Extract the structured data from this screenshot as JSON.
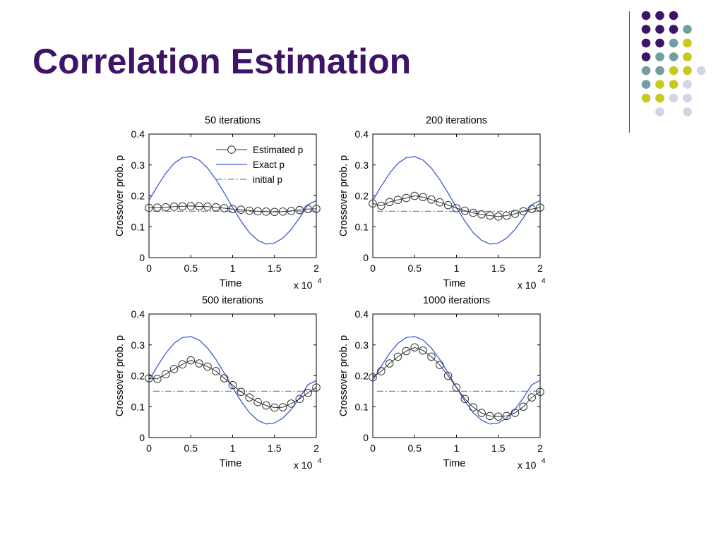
{
  "slide": {
    "title": "Correlation Estimation",
    "colors": {
      "title": "#3e1467",
      "purple": "#3e1467",
      "teal": "#6f9fa0",
      "yellow": "#c8c81e",
      "lavender": "#d4d4e8"
    }
  },
  "decor_dots": {
    "rows": [
      [
        "purple",
        "purple",
        "purple",
        null
      ],
      [
        "purple",
        "purple",
        "purple",
        "teal"
      ],
      [
        "purple",
        "purple",
        "teal",
        "yellow"
      ],
      [
        "purple",
        "teal",
        "teal",
        "yellow"
      ],
      [
        "teal",
        "teal",
        "yellow",
        "yellow",
        "lavender"
      ],
      [
        "teal",
        "yellow",
        "yellow",
        "lavender"
      ],
      [
        "yellow",
        "yellow",
        "lavender",
        "lavender"
      ],
      [
        null,
        "lavender",
        null,
        "lavender"
      ]
    ]
  },
  "chart_data": [
    {
      "type": "line",
      "title": "50 iterations",
      "xlabel": "Time",
      "ylabel": "Crossover prob. p",
      "x_multiplier": "x 10",
      "x_multiplier_exp": "4",
      "xlim": [
        0,
        2
      ],
      "ylim": [
        0,
        0.4
      ],
      "xticks": [
        "0",
        "0.5",
        "1",
        "1.5",
        "2"
      ],
      "yticks": [
        "0",
        "0.1",
        "0.2",
        "0.3",
        "0.4"
      ],
      "legend": {
        "position": "top-right",
        "entries": [
          "Estimated p",
          "Exact p",
          "initial p"
        ]
      },
      "series": [
        {
          "name": "Exact p",
          "x": [
            0,
            0.1,
            0.2,
            0.3,
            0.4,
            0.5,
            0.6,
            0.7,
            0.8,
            0.9,
            1.0,
            1.1,
            1.2,
            1.3,
            1.4,
            1.5,
            1.6,
            1.7,
            1.8,
            1.9,
            2.0
          ],
          "y": [
            0.185,
            0.231,
            0.273,
            0.305,
            0.324,
            0.327,
            0.316,
            0.29,
            0.253,
            0.209,
            0.162,
            0.118,
            0.081,
            0.056,
            0.044,
            0.047,
            0.063,
            0.091,
            0.129,
            0.171,
            0.185
          ]
        },
        {
          "name": "initial p",
          "x": [
            0.05,
            2.0
          ],
          "y": [
            0.15,
            0.15
          ]
        },
        {
          "name": "Estimated p",
          "x": [
            0,
            0.1,
            0.2,
            0.3,
            0.4,
            0.5,
            0.6,
            0.7,
            0.8,
            0.9,
            1.0,
            1.1,
            1.2,
            1.3,
            1.4,
            1.5,
            1.6,
            1.7,
            1.8,
            1.9,
            2.0
          ],
          "y": [
            0.161,
            0.162,
            0.163,
            0.165,
            0.166,
            0.167,
            0.166,
            0.165,
            0.163,
            0.16,
            0.157,
            0.155,
            0.152,
            0.15,
            0.149,
            0.148,
            0.149,
            0.151,
            0.154,
            0.157,
            0.158
          ]
        }
      ]
    },
    {
      "type": "line",
      "title": "200 iterations",
      "xlabel": "Time",
      "ylabel": "Crossover prob. p",
      "x_multiplier": "x 10",
      "x_multiplier_exp": "4",
      "xlim": [
        0,
        2
      ],
      "ylim": [
        0,
        0.4
      ],
      "xticks": [
        "0",
        "0.5",
        "1",
        "1.5",
        "2"
      ],
      "yticks": [
        "0",
        "0.1",
        "0.2",
        "0.3",
        "0.4"
      ],
      "series": [
        {
          "name": "Exact p",
          "x": [
            0,
            0.1,
            0.2,
            0.3,
            0.4,
            0.5,
            0.6,
            0.7,
            0.8,
            0.9,
            1.0,
            1.1,
            1.2,
            1.3,
            1.4,
            1.5,
            1.6,
            1.7,
            1.8,
            1.9,
            2.0
          ],
          "y": [
            0.185,
            0.231,
            0.273,
            0.305,
            0.324,
            0.327,
            0.316,
            0.29,
            0.253,
            0.209,
            0.162,
            0.118,
            0.081,
            0.056,
            0.044,
            0.047,
            0.063,
            0.091,
            0.129,
            0.171,
            0.185
          ]
        },
        {
          "name": "initial p",
          "x": [
            0.05,
            2.0
          ],
          "y": [
            0.15,
            0.15
          ]
        },
        {
          "name": "Estimated p",
          "x": [
            0,
            0.1,
            0.2,
            0.3,
            0.4,
            0.5,
            0.6,
            0.7,
            0.8,
            0.9,
            1.0,
            1.1,
            1.2,
            1.3,
            1.4,
            1.5,
            1.6,
            1.7,
            1.8,
            1.9,
            2.0
          ],
          "y": [
            0.175,
            0.168,
            0.18,
            0.187,
            0.193,
            0.2,
            0.196,
            0.188,
            0.179,
            0.17,
            0.16,
            0.152,
            0.145,
            0.14,
            0.136,
            0.133,
            0.136,
            0.142,
            0.15,
            0.157,
            0.162
          ]
        }
      ]
    },
    {
      "type": "line",
      "title": "500 iterations",
      "xlabel": "Time",
      "ylabel": "Crossover prob. p",
      "x_multiplier": "x 10",
      "x_multiplier_exp": "4",
      "xlim": [
        0,
        2
      ],
      "ylim": [
        0,
        0.4
      ],
      "xticks": [
        "0",
        "0.5",
        "1",
        "1.5",
        "2"
      ],
      "yticks": [
        "0",
        "0.1",
        "0.2",
        "0.3",
        "0.4"
      ],
      "series": [
        {
          "name": "Exact p",
          "x": [
            0,
            0.1,
            0.2,
            0.3,
            0.4,
            0.5,
            0.6,
            0.7,
            0.8,
            0.9,
            1.0,
            1.1,
            1.2,
            1.3,
            1.4,
            1.5,
            1.6,
            1.7,
            1.8,
            1.9,
            2.0
          ],
          "y": [
            0.185,
            0.231,
            0.273,
            0.305,
            0.324,
            0.327,
            0.316,
            0.29,
            0.253,
            0.209,
            0.162,
            0.118,
            0.081,
            0.056,
            0.044,
            0.047,
            0.063,
            0.091,
            0.129,
            0.171,
            0.185
          ]
        },
        {
          "name": "initial p",
          "x": [
            0.05,
            2.0
          ],
          "y": [
            0.15,
            0.15
          ]
        },
        {
          "name": "Estimated p",
          "x": [
            0,
            0.1,
            0.2,
            0.3,
            0.4,
            0.5,
            0.6,
            0.7,
            0.8,
            0.9,
            1.0,
            1.1,
            1.2,
            1.3,
            1.4,
            1.5,
            1.6,
            1.7,
            1.8,
            1.9,
            2.0
          ],
          "y": [
            0.192,
            0.19,
            0.205,
            0.222,
            0.237,
            0.25,
            0.24,
            0.23,
            0.215,
            0.192,
            0.17,
            0.148,
            0.13,
            0.115,
            0.104,
            0.097,
            0.098,
            0.11,
            0.125,
            0.145,
            0.162
          ]
        }
      ]
    },
    {
      "type": "line",
      "title": "1000 iterations",
      "xlabel": "Time",
      "ylabel": "Crossover prob. p",
      "x_multiplier": "x 10",
      "x_multiplier_exp": "4",
      "xlim": [
        0,
        2
      ],
      "ylim": [
        0,
        0.4
      ],
      "xticks": [
        "0",
        "0.5",
        "1",
        "1.5",
        "2"
      ],
      "yticks": [
        "0",
        "0.1",
        "0.2",
        "0.3",
        "0.4"
      ],
      "series": [
        {
          "name": "Exact p",
          "x": [
            0,
            0.1,
            0.2,
            0.3,
            0.4,
            0.5,
            0.6,
            0.7,
            0.8,
            0.9,
            1.0,
            1.1,
            1.2,
            1.3,
            1.4,
            1.5,
            1.6,
            1.7,
            1.8,
            1.9,
            2.0
          ],
          "y": [
            0.185,
            0.231,
            0.273,
            0.305,
            0.324,
            0.327,
            0.316,
            0.29,
            0.253,
            0.209,
            0.162,
            0.118,
            0.081,
            0.056,
            0.044,
            0.047,
            0.063,
            0.091,
            0.129,
            0.171,
            0.185
          ]
        },
        {
          "name": "initial p",
          "x": [
            0.05,
            2.0
          ],
          "y": [
            0.15,
            0.15
          ]
        },
        {
          "name": "Estimated p",
          "x": [
            0,
            0.1,
            0.2,
            0.3,
            0.4,
            0.5,
            0.6,
            0.7,
            0.8,
            0.9,
            1.0,
            1.1,
            1.2,
            1.3,
            1.4,
            1.5,
            1.6,
            1.7,
            1.8,
            1.9,
            2.0
          ],
          "y": [
            0.195,
            0.215,
            0.24,
            0.262,
            0.28,
            0.292,
            0.282,
            0.262,
            0.235,
            0.2,
            0.162,
            0.125,
            0.098,
            0.08,
            0.07,
            0.068,
            0.07,
            0.08,
            0.1,
            0.13,
            0.148
          ]
        }
      ]
    }
  ]
}
